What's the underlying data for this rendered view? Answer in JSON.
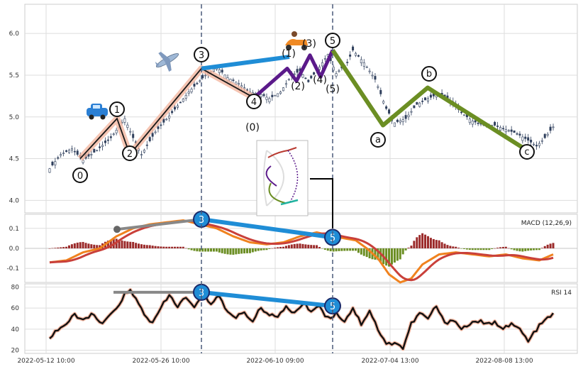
{
  "chart_data": [
    {
      "type": "candlestick",
      "panel": "price",
      "ylim": [
        3.85,
        6.35
      ],
      "yticks": [
        "4.0",
        "4.5",
        "5.0",
        "5.5",
        "6.0"
      ],
      "x_tick_labels": [
        "2022-05-12 10:00",
        "2022-05-26 10:00",
        "2022-06-10 09:00",
        "2022-07-04 13:00",
        "2022-08-08 13:00"
      ],
      "price_path": [
        [
          0,
          4.38
        ],
        [
          4,
          4.55
        ],
        [
          8,
          4.62
        ],
        [
          12,
          4.48
        ],
        [
          17,
          4.6
        ],
        [
          22,
          4.75
        ],
        [
          27,
          4.98
        ],
        [
          30,
          4.75
        ],
        [
          33,
          4.55
        ],
        [
          38,
          4.82
        ],
        [
          44,
          5.05
        ],
        [
          50,
          5.3
        ],
        [
          56,
          5.5
        ],
        [
          60,
          5.6
        ],
        [
          64,
          5.47
        ],
        [
          68,
          5.4
        ],
        [
          72,
          5.3
        ],
        [
          76,
          5.27
        ],
        [
          79,
          5.22
        ],
        [
          83,
          5.3
        ],
        [
          87,
          5.5
        ],
        [
          90,
          5.55
        ],
        [
          93,
          5.42
        ],
        [
          97,
          5.6
        ],
        [
          100,
          5.75
        ],
        [
          103,
          5.52
        ],
        [
          107,
          5.65
        ],
        [
          109,
          5.8
        ],
        [
          113,
          5.65
        ],
        [
          117,
          5.45
        ],
        [
          121,
          5.1
        ],
        [
          124,
          4.93
        ],
        [
          128,
          4.98
        ],
        [
          132,
          5.15
        ],
        [
          136,
          5.22
        ],
        [
          140,
          5.28
        ],
        [
          144,
          5.2
        ],
        [
          148,
          5.05
        ],
        [
          152,
          4.95
        ],
        [
          156,
          4.9
        ],
        [
          160,
          4.9
        ],
        [
          164,
          4.85
        ],
        [
          168,
          4.8
        ],
        [
          172,
          4.72
        ],
        [
          175,
          4.65
        ],
        [
          178,
          4.75
        ],
        [
          181,
          4.88
        ]
      ],
      "elliott_main": {
        "labels": [
          "0",
          "1",
          "2",
          "3",
          "4",
          "5"
        ],
        "values": [
          4.5,
          4.98,
          4.55,
          5.58,
          5.23,
          5.8
        ]
      },
      "elliott_sub": {
        "labels": [
          "(0)",
          "(1)",
          "(2)",
          "(3)",
          "(4)",
          "(5)"
        ],
        "values": [
          5.23,
          5.58,
          5.43,
          5.74,
          5.48,
          5.8
        ]
      },
      "abc_correction": {
        "labels": [
          "a",
          "b",
          "c"
        ],
        "values": [
          4.9,
          5.35,
          4.6
        ]
      },
      "divergence_line": [
        5.58,
        5.72
      ]
    },
    {
      "type": "line",
      "panel": "macd",
      "name": "MACD (12,26,9)",
      "ylim": [
        -0.17,
        0.17
      ],
      "yticks": [
        "0.1",
        "0.0",
        "-0.1"
      ],
      "macd_path": [
        [
          0,
          -0.07
        ],
        [
          6,
          -0.06
        ],
        [
          12,
          -0.02
        ],
        [
          18,
          0.0
        ],
        [
          24,
          0.06
        ],
        [
          30,
          0.1
        ],
        [
          36,
          0.12
        ],
        [
          42,
          0.13
        ],
        [
          48,
          0.14
        ],
        [
          54,
          0.12
        ],
        [
          60,
          0.1
        ],
        [
          66,
          0.06
        ],
        [
          72,
          0.03
        ],
        [
          78,
          0.02
        ],
        [
          84,
          0.03
        ],
        [
          90,
          0.06
        ],
        [
          96,
          0.08
        ],
        [
          102,
          0.06
        ],
        [
          106,
          0.05
        ],
        [
          110,
          0.04
        ],
        [
          114,
          0.0
        ],
        [
          118,
          -0.05
        ],
        [
          122,
          -0.13
        ],
        [
          126,
          -0.17
        ],
        [
          130,
          -0.15
        ],
        [
          134,
          -0.08
        ],
        [
          140,
          -0.03
        ],
        [
          146,
          -0.02
        ],
        [
          152,
          -0.03
        ],
        [
          158,
          -0.04
        ],
        [
          164,
          -0.03
        ],
        [
          170,
          -0.05
        ],
        [
          176,
          -0.06
        ],
        [
          181,
          -0.03
        ]
      ],
      "pivots": [
        "3",
        "5"
      ]
    },
    {
      "type": "line",
      "panel": "rsi",
      "name": "RSI 14",
      "ylim": [
        17,
        83
      ],
      "yticks": [
        "80",
        "60",
        "40",
        "20"
      ],
      "rsi_path": [
        [
          0,
          32
        ],
        [
          3,
          40
        ],
        [
          6,
          45
        ],
        [
          9,
          53
        ],
        [
          12,
          48
        ],
        [
          15,
          55
        ],
        [
          18,
          45
        ],
        [
          21,
          50
        ],
        [
          24,
          60
        ],
        [
          27,
          73
        ],
        [
          29,
          76
        ],
        [
          31,
          68
        ],
        [
          34,
          55
        ],
        [
          37,
          45
        ],
        [
          40,
          60
        ],
        [
          43,
          72
        ],
        [
          46,
          62
        ],
        [
          49,
          70
        ],
        [
          52,
          60
        ],
        [
          55,
          72
        ],
        [
          58,
          65
        ],
        [
          61,
          72
        ],
        [
          64,
          55
        ],
        [
          67,
          52
        ],
        [
          70,
          56
        ],
        [
          73,
          48
        ],
        [
          76,
          60
        ],
        [
          79,
          55
        ],
        [
          82,
          50
        ],
        [
          85,
          62
        ],
        [
          88,
          55
        ],
        [
          91,
          64
        ],
        [
          94,
          58
        ],
        [
          97,
          62
        ],
        [
          100,
          50
        ],
        [
          103,
          55
        ],
        [
          106,
          48
        ],
        [
          109,
          60
        ],
        [
          112,
          45
        ],
        [
          115,
          58
        ],
        [
          118,
          40
        ],
        [
          121,
          25
        ],
        [
          124,
          28
        ],
        [
          127,
          22
        ],
        [
          130,
          45
        ],
        [
          133,
          55
        ],
        [
          136,
          50
        ],
        [
          139,
          62
        ],
        [
          142,
          45
        ],
        [
          145,
          50
        ],
        [
          148,
          40
        ],
        [
          151,
          45
        ],
        [
          154,
          48
        ],
        [
          157,
          44
        ],
        [
          160,
          46
        ],
        [
          163,
          42
        ],
        [
          166,
          44
        ],
        [
          169,
          40
        ],
        [
          172,
          28
        ],
        [
          175,
          40
        ],
        [
          178,
          48
        ],
        [
          181,
          55
        ]
      ],
      "pivots": [
        "3",
        "5"
      ]
    }
  ]
}
